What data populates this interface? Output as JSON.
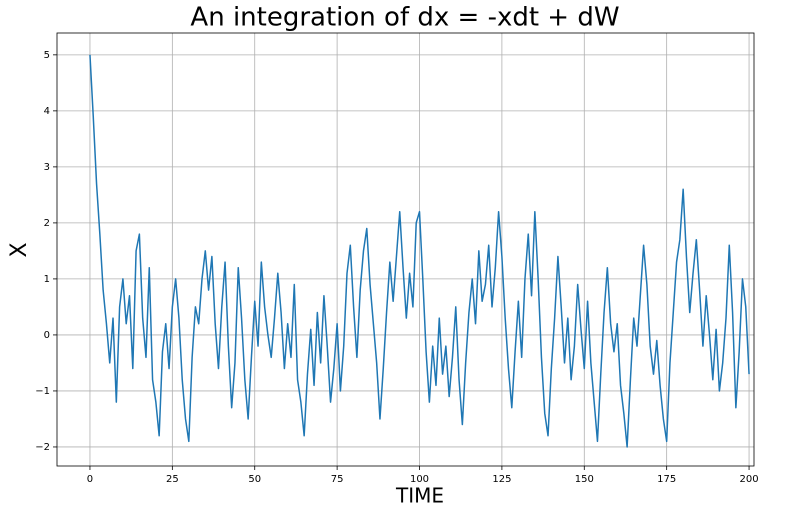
{
  "chart_data": {
    "type": "line",
    "title": "An integration of dx = -xdt + dW",
    "xlabel": "TIME",
    "ylabel": "X",
    "color": "#1f77b4",
    "grid": true,
    "xlim": [
      -10,
      201.5
    ],
    "ylim": [
      -2.34,
      5.39
    ],
    "xticks": [
      0,
      25,
      50,
      75,
      100,
      125,
      150,
      175,
      200
    ],
    "yticks": [
      {
        "value": -2,
        "label": "−2"
      },
      {
        "value": -1,
        "label": "−1"
      },
      0,
      1,
      2,
      3,
      4,
      5
    ],
    "x": [
      0,
      1,
      2,
      3,
      4,
      5,
      6,
      7,
      8,
      9,
      10,
      11,
      12,
      13,
      14,
      15,
      16,
      17,
      18,
      19,
      20,
      21,
      22,
      23,
      24,
      25,
      26,
      27,
      28,
      29,
      30,
      31,
      32,
      33,
      34,
      35,
      36,
      37,
      38,
      39,
      40,
      41,
      42,
      43,
      44,
      45,
      46,
      47,
      48,
      49,
      50,
      51,
      52,
      53,
      54,
      55,
      56,
      57,
      58,
      59,
      60,
      61,
      62,
      63,
      64,
      65,
      66,
      67,
      68,
      69,
      70,
      71,
      72,
      73,
      74,
      75,
      76,
      77,
      78,
      79,
      80,
      81,
      82,
      83,
      84,
      85,
      86,
      87,
      88,
      89,
      90,
      91,
      92,
      93,
      94,
      95,
      96,
      97,
      98,
      99,
      100,
      101,
      102,
      103,
      104,
      105,
      106,
      107,
      108,
      109,
      110,
      111,
      112,
      113,
      114,
      115,
      116,
      117,
      118,
      119,
      120,
      121,
      122,
      123,
      124,
      125,
      126,
      127,
      128,
      129,
      130,
      131,
      132,
      133,
      134,
      135,
      136,
      137,
      138,
      139,
      140,
      141,
      142,
      143,
      144,
      145,
      146,
      147,
      148,
      149,
      150,
      151,
      152,
      153,
      154,
      155,
      156,
      157,
      158,
      159,
      160,
      161,
      162,
      163,
      164,
      165,
      166,
      167,
      168,
      169,
      170,
      171,
      172,
      173,
      174,
      175,
      176,
      177,
      178,
      179,
      180,
      181,
      182,
      183,
      184,
      185,
      186,
      187,
      188,
      189,
      190,
      191,
      192,
      193,
      194,
      195,
      196,
      197,
      198,
      199,
      200
    ],
    "values": [
      5.0,
      3.9,
      2.7,
      1.8,
      0.8,
      0.2,
      -0.5,
      0.3,
      -1.2,
      0.5,
      1.0,
      0.2,
      0.7,
      -0.6,
      1.5,
      1.8,
      0.3,
      -0.4,
      1.2,
      -0.8,
      -1.2,
      -1.8,
      -0.3,
      0.2,
      -0.6,
      0.5,
      1.0,
      0.3,
      -0.8,
      -1.5,
      -1.9,
      -0.4,
      0.5,
      0.2,
      1.0,
      1.5,
      0.8,
      1.4,
      0.2,
      -0.6,
      0.5,
      1.3,
      -0.2,
      -1.3,
      -0.5,
      1.2,
      0.3,
      -0.8,
      -1.5,
      -0.4,
      0.6,
      -0.2,
      1.3,
      0.5,
      0.0,
      -0.4,
      0.3,
      1.1,
      0.4,
      -0.6,
      0.2,
      -0.4,
      0.9,
      -0.8,
      -1.2,
      -1.8,
      -0.7,
      0.1,
      -0.9,
      0.4,
      -0.5,
      0.7,
      -0.2,
      -1.2,
      -0.6,
      0.2,
      -1.0,
      -0.2,
      1.1,
      1.6,
      0.5,
      -0.4,
      0.8,
      1.5,
      1.9,
      0.9,
      0.2,
      -0.5,
      -1.5,
      -0.6,
      0.4,
      1.3,
      0.6,
      1.4,
      2.2,
      1.2,
      0.3,
      1.1,
      0.5,
      2.0,
      2.2,
      1.0,
      -0.3,
      -1.2,
      -0.2,
      -0.9,
      0.3,
      -0.7,
      -0.2,
      -1.1,
      -0.4,
      0.5,
      -0.8,
      -1.6,
      -0.5,
      0.4,
      1.0,
      0.2,
      1.5,
      0.6,
      0.9,
      1.6,
      0.5,
      1.2,
      2.2,
      1.4,
      0.3,
      -0.6,
      -1.3,
      -0.3,
      0.6,
      -0.4,
      1.0,
      1.8,
      0.7,
      2.2,
      1.0,
      -0.4,
      -1.4,
      -1.8,
      -0.6,
      0.3,
      1.4,
      0.5,
      -0.5,
      0.3,
      -0.8,
      -0.2,
      0.9,
      0.1,
      -0.6,
      0.6,
      -0.5,
      -1.2,
      -1.9,
      -0.7,
      0.4,
      1.2,
      0.2,
      -0.3,
      0.2,
      -0.9,
      -1.4,
      -2.0,
      -0.8,
      0.3,
      -0.2,
      0.7,
      1.6,
      0.9,
      -0.2,
      -0.7,
      -0.1,
      -0.9,
      -1.5,
      -1.9,
      -0.5,
      0.4,
      1.3,
      1.7,
      2.6,
      1.4,
      0.4,
      1.1,
      1.7,
      0.8,
      -0.2,
      0.7,
      0.0,
      -0.8,
      0.1,
      -1.0,
      -0.5,
      0.3,
      1.6,
      0.4,
      -1.3,
      -0.3,
      1.0,
      0.5,
      -0.7
    ]
  }
}
